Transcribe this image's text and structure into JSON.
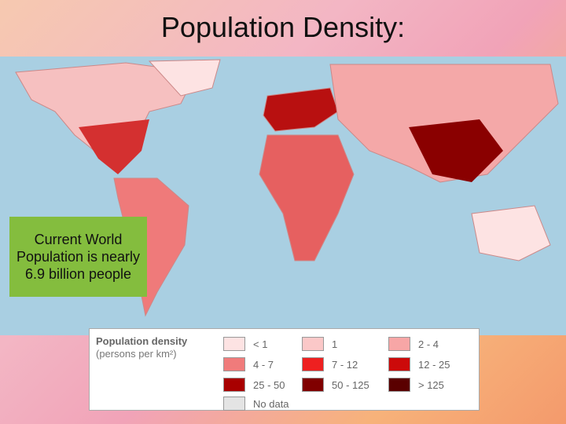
{
  "title": "Population Density:",
  "callout": "Current World Population is nearly 6.9 billion people",
  "legend": {
    "title": "Population density",
    "subtitle": "(persons per km²)",
    "items": [
      {
        "label": "< 1",
        "color": "#fde3e3"
      },
      {
        "label": "1",
        "color": "#fbc8c8"
      },
      {
        "label": "2 - 4",
        "color": "#f7a6a6"
      },
      {
        "label": "4 - 7",
        "color": "#f07b7b"
      },
      {
        "label": "7 - 12",
        "color": "#ee2020"
      },
      {
        "label": "12 - 25",
        "color": "#cc0a0a"
      },
      {
        "label": "25 - 50",
        "color": "#a80000"
      },
      {
        "label": "50 - 125",
        "color": "#800000"
      },
      {
        "label": "> 125",
        "color": "#5a0000"
      },
      {
        "label": "No data",
        "color": "#e4e4e4"
      }
    ]
  }
}
